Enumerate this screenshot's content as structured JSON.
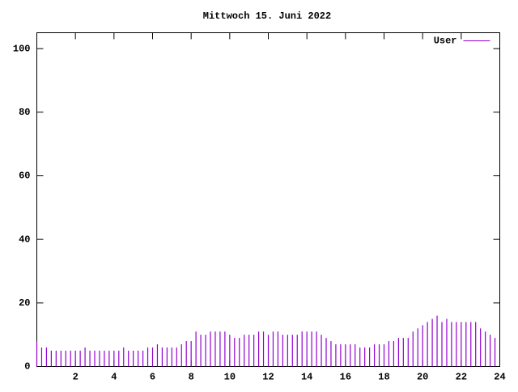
{
  "chart_data": {
    "type": "impulses",
    "title": "Mittwoch 15. Juni 2022",
    "x": [
      0,
      0.25,
      0.5,
      0.75,
      1,
      1.25,
      1.5,
      1.75,
      2,
      2.25,
      2.5,
      2.75,
      3,
      3.25,
      3.5,
      3.75,
      4,
      4.25,
      4.5,
      4.75,
      5,
      5.25,
      5.5,
      5.75,
      6,
      6.25,
      6.5,
      6.75,
      7,
      7.25,
      7.5,
      7.75,
      8,
      8.25,
      8.5,
      8.75,
      9,
      9.25,
      9.5,
      9.75,
      10,
      10.25,
      10.5,
      10.75,
      11,
      11.25,
      11.5,
      11.75,
      12,
      12.25,
      12.5,
      12.75,
      13,
      13.25,
      13.5,
      13.75,
      14,
      14.25,
      14.5,
      14.75,
      15,
      15.25,
      15.5,
      15.75,
      16,
      16.25,
      16.5,
      16.75,
      17,
      17.25,
      17.5,
      17.75,
      18,
      18.25,
      18.5,
      18.75,
      19,
      19.25,
      19.5,
      19.75,
      20,
      20.25,
      20.5,
      20.75,
      21,
      21.25,
      21.5,
      21.75,
      22,
      22.25,
      22.5,
      22.75,
      23,
      23.25,
      23.5,
      23.75
    ],
    "series": [
      {
        "name": "User",
        "color": "#9400d3",
        "values": [
          8,
          6,
          6,
          5,
          5,
          5,
          5,
          5,
          5,
          5,
          6,
          5,
          5,
          5,
          5,
          5,
          5,
          5,
          6,
          5,
          5,
          5,
          5,
          6,
          6,
          7,
          6,
          6,
          6,
          6,
          7,
          8,
          8,
          11,
          10,
          10,
          11,
          11,
          11,
          11,
          10,
          9,
          9,
          10,
          10,
          10,
          11,
          11,
          10,
          11,
          11,
          10,
          10,
          10,
          10,
          11,
          11,
          11,
          11,
          10,
          9,
          8,
          7,
          7,
          7,
          7,
          7,
          6,
          6,
          6,
          7,
          7,
          7,
          8,
          8,
          9,
          9,
          9,
          11,
          12,
          13,
          14,
          15,
          16,
          14,
          15,
          14,
          14,
          14,
          14,
          14,
          14,
          12,
          11,
          10,
          9
        ]
      }
    ],
    "xlim": [
      0,
      24
    ],
    "xticks": [
      2,
      4,
      6,
      8,
      10,
      12,
      14,
      16,
      18,
      20,
      22,
      24
    ],
    "ylim": [
      0,
      105
    ],
    "yticks": [
      0,
      20,
      40,
      60,
      80,
      100
    ],
    "legend": "top-right"
  }
}
